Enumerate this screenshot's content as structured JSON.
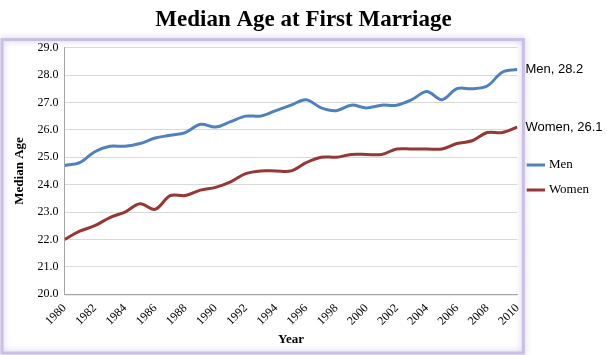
{
  "chart_data": {
    "type": "line",
    "title": "Median Age at First Marriage",
    "x_label": "Year",
    "y_label": "Median Age",
    "x": [
      1980,
      1981,
      1982,
      1983,
      1984,
      1985,
      1986,
      1987,
      1988,
      1989,
      1990,
      1991,
      1992,
      1993,
      1994,
      1995,
      1996,
      1997,
      1998,
      1999,
      2000,
      2001,
      2002,
      2003,
      2004,
      2005,
      2006,
      2007,
      2008,
      2009,
      2010
    ],
    "xlim": [
      1980,
      2010
    ],
    "xticks": [
      1980,
      1982,
      1984,
      1986,
      1988,
      1990,
      1992,
      1994,
      1996,
      1998,
      2000,
      2002,
      2004,
      2006,
      2008,
      2010
    ],
    "ylim": [
      20,
      29
    ],
    "yticks": [
      {
        "value": 20,
        "label": "20.0"
      },
      {
        "value": 21,
        "label": "21.0"
      },
      {
        "value": 22,
        "label": "22.0"
      },
      {
        "value": 23,
        "label": "23.0"
      },
      {
        "value": 24,
        "label": "24.0"
      },
      {
        "value": 25,
        "label": "25.0"
      },
      {
        "value": 26,
        "label": "26.0"
      },
      {
        "value": 27,
        "label": "27.0"
      },
      {
        "value": 28,
        "label": "28.0"
      },
      {
        "value": 29,
        "label": "29.0"
      }
    ],
    "grid": true,
    "legend": "right",
    "series": [
      {
        "name": "Men",
        "color": "#4f81bd",
        "values": [
          24.7,
          24.8,
          25.2,
          25.4,
          25.4,
          25.5,
          25.7,
          25.8,
          25.9,
          26.2,
          26.1,
          26.3,
          26.5,
          26.5,
          26.7,
          26.9,
          27.1,
          26.8,
          26.7,
          26.9,
          26.8,
          26.9,
          26.9,
          27.1,
          27.4,
          27.1,
          27.5,
          27.5,
          27.6,
          28.1,
          28.2
        ]
      },
      {
        "name": "Women",
        "color": "#953735",
        "values": [
          22.0,
          22.3,
          22.5,
          22.8,
          23.0,
          23.3,
          23.1,
          23.6,
          23.6,
          23.8,
          23.9,
          24.1,
          24.4,
          24.5,
          24.5,
          24.5,
          24.8,
          25.0,
          25.0,
          25.1,
          25.1,
          25.1,
          25.3,
          25.3,
          25.3,
          25.3,
          25.5,
          25.6,
          25.9,
          25.9,
          26.1
        ]
      }
    ],
    "annotations": [
      {
        "text": "Men, 28.2",
        "x": 2010,
        "y": 28.2
      },
      {
        "text": "Women, 26.1",
        "x": 2010,
        "y": 26.1
      }
    ]
  }
}
